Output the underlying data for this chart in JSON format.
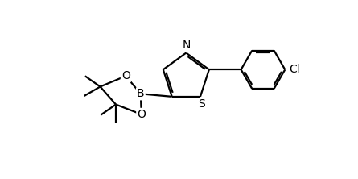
{
  "background_color": "#ffffff",
  "line_color": "#000000",
  "line_width": 1.6,
  "figsize": [
    4.45,
    2.22
  ],
  "dpi": 100,
  "font_size": 10,
  "xlim": [
    0,
    10
  ],
  "ylim": [
    0,
    5
  ]
}
